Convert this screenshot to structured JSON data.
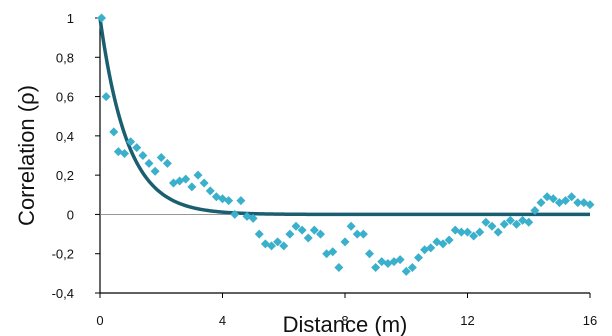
{
  "chart_data": {
    "type": "scatter",
    "title": "",
    "xlabel": "Distance (m)",
    "ylabel": "Correlation (ρ)",
    "xlim": [
      0,
      16
    ],
    "ylim": [
      -0.4,
      1
    ],
    "x_ticks": [
      "0",
      "4",
      "8",
      "12",
      "16"
    ],
    "y_ticks": [
      "1",
      "0,8",
      "0,6",
      "0,4",
      "0,2",
      "0",
      "-0,2",
      "-0,4"
    ],
    "grid": false,
    "legend": "none",
    "colors": {
      "points": "#3ab0cc",
      "fit": "#1a5f6f",
      "axis": "#000000"
    },
    "series": [
      {
        "kind": "points",
        "x": [
          0.05,
          0.2,
          0.45,
          0.6,
          0.8,
          1.0,
          1.2,
          1.4,
          1.6,
          1.8,
          2.0,
          2.2,
          2.4,
          2.6,
          2.8,
          3.0,
          3.2,
          3.4,
          3.6,
          3.8,
          4.0,
          4.2,
          4.4,
          4.6,
          4.8,
          5.0,
          5.2,
          5.4,
          5.6,
          5.8,
          6.0,
          6.2,
          6.4,
          6.6,
          6.8,
          7.0,
          7.2,
          7.4,
          7.6,
          7.8,
          8.0,
          8.2,
          8.4,
          8.6,
          8.8,
          9.0,
          9.2,
          9.4,
          9.6,
          9.8,
          10.0,
          10.2,
          10.4,
          10.6,
          10.8,
          11.0,
          11.2,
          11.4,
          11.6,
          11.8,
          12.0,
          12.2,
          12.4,
          12.6,
          12.8,
          13.0,
          13.2,
          13.4,
          13.6,
          13.8,
          14.0,
          14.2,
          14.4,
          14.6,
          14.8,
          15.0,
          15.2,
          15.4,
          15.6,
          15.8,
          16.0
        ],
        "y": [
          1.0,
          0.6,
          0.42,
          0.32,
          0.31,
          0.37,
          0.34,
          0.3,
          0.26,
          0.22,
          0.29,
          0.26,
          0.16,
          0.17,
          0.18,
          0.14,
          0.2,
          0.16,
          0.12,
          0.09,
          0.08,
          0.07,
          0.0,
          0.07,
          -0.01,
          -0.02,
          -0.1,
          -0.15,
          -0.16,
          -0.14,
          -0.16,
          -0.1,
          -0.06,
          -0.08,
          -0.12,
          -0.08,
          -0.1,
          -0.2,
          -0.19,
          -0.27,
          -0.14,
          -0.06,
          -0.1,
          -0.1,
          -0.2,
          -0.27,
          -0.24,
          -0.25,
          -0.24,
          -0.23,
          -0.29,
          -0.27,
          -0.22,
          -0.18,
          -0.17,
          -0.14,
          -0.15,
          -0.13,
          -0.08,
          -0.09,
          -0.09,
          -0.11,
          -0.09,
          -0.04,
          -0.06,
          -0.09,
          -0.05,
          -0.03,
          -0.05,
          -0.03,
          -0.04,
          0.02,
          0.06,
          0.09,
          0.08,
          0.06,
          0.07,
          0.09,
          0.06,
          0.06,
          0.05
        ]
      },
      {
        "kind": "fit",
        "function": "exp(-x/0.9)"
      }
    ]
  }
}
